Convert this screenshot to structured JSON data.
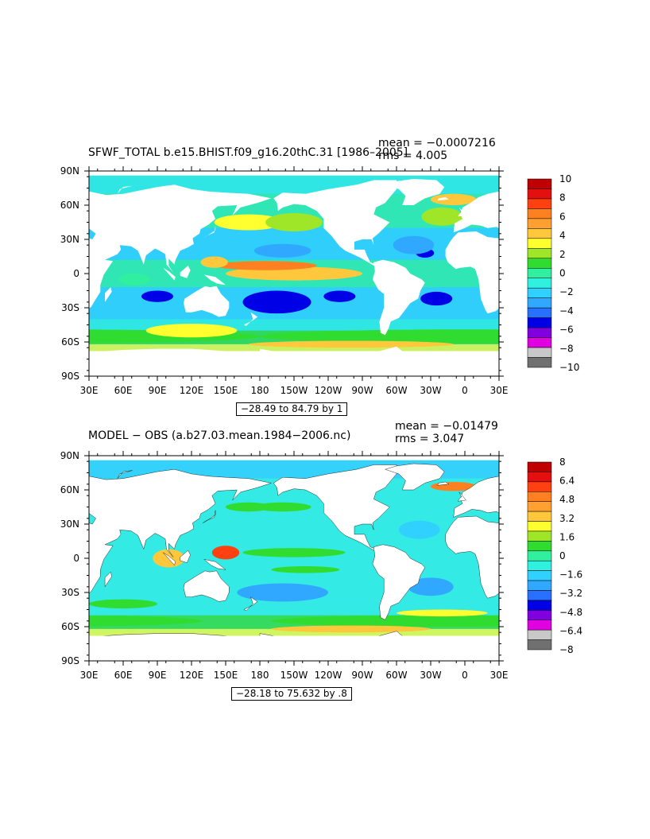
{
  "chart_data": [
    {
      "type": "heatmap",
      "title": "SFWF_TOTAL b.e15.BHIST.f09_g16.20thC.31 [1986–2005]",
      "stats": {
        "mean": "mean = −0.0007216",
        "rms": "rms = 4.005"
      },
      "range_label": "−28.49 to 84.79 by 1",
      "x_ticks": [
        "30E",
        "60E",
        "90E",
        "120E",
        "150E",
        "180",
        "150W",
        "120W",
        "90W",
        "60W",
        "30W",
        "0",
        "30E"
      ],
      "y_ticks": [
        "90N",
        "60N",
        "30N",
        "0",
        "30S",
        "60S",
        "90S"
      ],
      "colorbar": {
        "labels": [
          "10",
          "8",
          "6",
          "4",
          "2",
          "0",
          "−2",
          "−4",
          "−6",
          "−8",
          "−10"
        ],
        "colors": [
          "#c00000",
          "#e41010",
          "#ff4010",
          "#ff8020",
          "#ffa030",
          "#ffc83c",
          "#ffff30",
          "#a0e628",
          "#30dc30",
          "#30f0a0",
          "#30f0e0",
          "#30d0ff",
          "#30a8ff",
          "#2870ff",
          "#0000e6",
          "#8000e0",
          "#e000e0",
          "#c8c8c8",
          "#707070"
        ]
      }
    },
    {
      "type": "heatmap",
      "title": "MODEL − OBS (a.b27.03.mean.1984−2006.nc)",
      "stats": {
        "mean": "mean = −0.01479",
        "rms": "rms = 3.047"
      },
      "range_label": "−28.18 to 75.632 by .8",
      "x_ticks": [
        "30E",
        "60E",
        "90E",
        "120E",
        "150E",
        "180",
        "150W",
        "120W",
        "90W",
        "60W",
        "30W",
        "0",
        "30E"
      ],
      "y_ticks": [
        "90N",
        "60N",
        "30N",
        "0",
        "30S",
        "60S",
        "90S"
      ],
      "colorbar": {
        "labels": [
          "8",
          "6.4",
          "4.8",
          "3.2",
          "1.6",
          "0",
          "−1.6",
          "−3.2",
          "−4.8",
          "−6.4",
          "−8"
        ],
        "colors": [
          "#c00000",
          "#e41010",
          "#ff4010",
          "#ff8020",
          "#ffa030",
          "#ffc83c",
          "#ffff30",
          "#a0e628",
          "#30dc30",
          "#30f0a0",
          "#30f0e0",
          "#30d0ff",
          "#30a8ff",
          "#2870ff",
          "#0000e6",
          "#8000e0",
          "#e000e0",
          "#c8c8c8",
          "#707070"
        ]
      }
    }
  ]
}
